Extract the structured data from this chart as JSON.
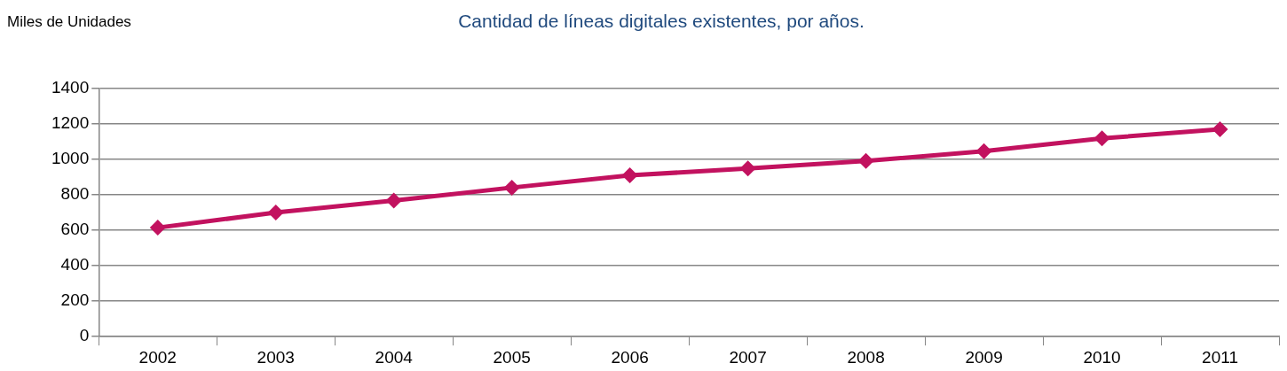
{
  "chart_data": {
    "type": "line",
    "title": "Cantidad de líneas digitales existentes, por años.",
    "ylabel": "Miles de Unidades",
    "categories": [
      "2002",
      "2003",
      "2004",
      "2005",
      "2006",
      "2007",
      "2008",
      "2009",
      "2010",
      "2011"
    ],
    "series": [
      {
        "color": "#c2125f",
        "values": [
          615,
          700,
          768,
          841,
          910,
          949,
          991,
          1047,
          1119,
          1170
        ]
      }
    ],
    "ylim": [
      0,
      1400
    ],
    "yticks": [
      0,
      200,
      400,
      600,
      800,
      1000,
      1200,
      1400
    ],
    "grid": "y",
    "legend": false,
    "marker": "diamond",
    "line_style": "solid"
  }
}
